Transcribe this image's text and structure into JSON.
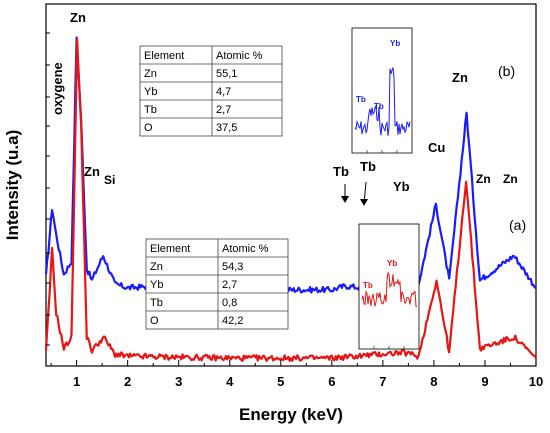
{
  "chart_data": {
    "type": "line",
    "xlabel": "Energy (keV)",
    "ylabel": "Intensity (u.a)",
    "xlim": [
      0.4,
      10
    ],
    "x_ticks": [
      "1",
      "2",
      "3",
      "4",
      "5",
      "6",
      "7",
      "8",
      "9",
      "10"
    ],
    "series": [
      {
        "name": "(b)",
        "color": "#1a1aff",
        "peaks": [
          {
            "x": 0.4,
            "y": 44
          },
          {
            "x": 0.52,
            "y": 80
          },
          {
            "x": 0.6,
            "y": 66
          },
          {
            "x": 0.75,
            "y": 45
          },
          {
            "x": 0.9,
            "y": 52
          },
          {
            "x": 1.0,
            "y": 170
          },
          {
            "x": 1.09,
            "y": 125
          },
          {
            "x": 1.2,
            "y": 48
          },
          {
            "x": 1.3,
            "y": 42
          },
          {
            "x": 1.52,
            "y": 55
          },
          {
            "x": 1.75,
            "y": 40
          },
          {
            "x": 2.0,
            "y": 38
          },
          {
            "x": 2.6,
            "y": 39
          },
          {
            "x": 4.0,
            "y": 37
          },
          {
            "x": 6.0,
            "y": 37
          },
          {
            "x": 6.27,
            "y": 39
          },
          {
            "x": 6.6,
            "y": 38
          },
          {
            "x": 7.4,
            "y": 45
          },
          {
            "x": 7.7,
            "y": 40
          },
          {
            "x": 8.04,
            "y": 82
          },
          {
            "x": 8.3,
            "y": 42
          },
          {
            "x": 8.64,
            "y": 130
          },
          {
            "x": 8.9,
            "y": 42
          },
          {
            "x": 9.57,
            "y": 55
          },
          {
            "x": 10.0,
            "y": 38
          }
        ]
      },
      {
        "name": "(a)",
        "color": "#e81515",
        "peaks": [
          {
            "x": 0.4,
            "y": 4
          },
          {
            "x": 0.52,
            "y": 58
          },
          {
            "x": 0.6,
            "y": 25
          },
          {
            "x": 0.75,
            "y": 6
          },
          {
            "x": 0.9,
            "y": 12
          },
          {
            "x": 1.01,
            "y": 168
          },
          {
            "x": 1.09,
            "y": 122
          },
          {
            "x": 1.2,
            "y": 12
          },
          {
            "x": 1.3,
            "y": 5
          },
          {
            "x": 1.53,
            "y": 12
          },
          {
            "x": 1.75,
            "y": 3
          },
          {
            "x": 2.0,
            "y": 2
          },
          {
            "x": 4.0,
            "y": 1
          },
          {
            "x": 6.0,
            "y": 1
          },
          {
            "x": 7.4,
            "y": 4
          },
          {
            "x": 7.7,
            "y": 2
          },
          {
            "x": 8.05,
            "y": 42
          },
          {
            "x": 8.3,
            "y": 4
          },
          {
            "x": 8.63,
            "y": 95
          },
          {
            "x": 8.9,
            "y": 6
          },
          {
            "x": 9.57,
            "y": 12
          },
          {
            "x": 10.0,
            "y": 1
          }
        ]
      }
    ],
    "peak_labels": [
      {
        "text": "Zn",
        "x": 1.0,
        "size": "big"
      },
      {
        "text": "oxygene",
        "x": 0.55,
        "size": "big",
        "rotated": true
      },
      {
        "text": "Zn",
        "x": 1.26,
        "size": "big"
      },
      {
        "text": "Si",
        "x": 1.6,
        "size": "small"
      },
      {
        "text": "Tb",
        "x": 6.3,
        "size": "light"
      },
      {
        "text": "Tb",
        "x": 6.7,
        "size": "big"
      },
      {
        "text": "Yb",
        "x": 7.4,
        "size": "big"
      },
      {
        "text": "Cu",
        "x": 8.05,
        "size": "big"
      },
      {
        "text": "Zn",
        "x": 8.65,
        "size": "big"
      },
      {
        "text": "Zn",
        "x": 9.05,
        "size": "small"
      },
      {
        "text": "Zn",
        "x": 9.55,
        "size": "small"
      }
    ],
    "tables": [
      {
        "headers": [
          "Element",
          "Atomic %"
        ],
        "rows": [
          [
            "Zn",
            "55,1"
          ],
          [
            "Yb",
            "4,7"
          ],
          [
            "Tb",
            "2,7"
          ],
          [
            "O",
            "37,5"
          ]
        ]
      },
      {
        "headers": [
          "Element",
          "Atomic %"
        ],
        "rows": [
          [
            "Zn",
            "54,3"
          ],
          [
            "Yb",
            "2,7"
          ],
          [
            "Tb",
            "0,8"
          ],
          [
            "O",
            "42,2"
          ]
        ]
      }
    ],
    "insets": [
      {
        "labels": [
          "Yb",
          "Tb",
          "Tb"
        ],
        "color": "#1a1aff"
      },
      {
        "labels": [
          "Yb",
          "Tb"
        ],
        "color": "#e81515"
      }
    ],
    "grid": false
  }
}
